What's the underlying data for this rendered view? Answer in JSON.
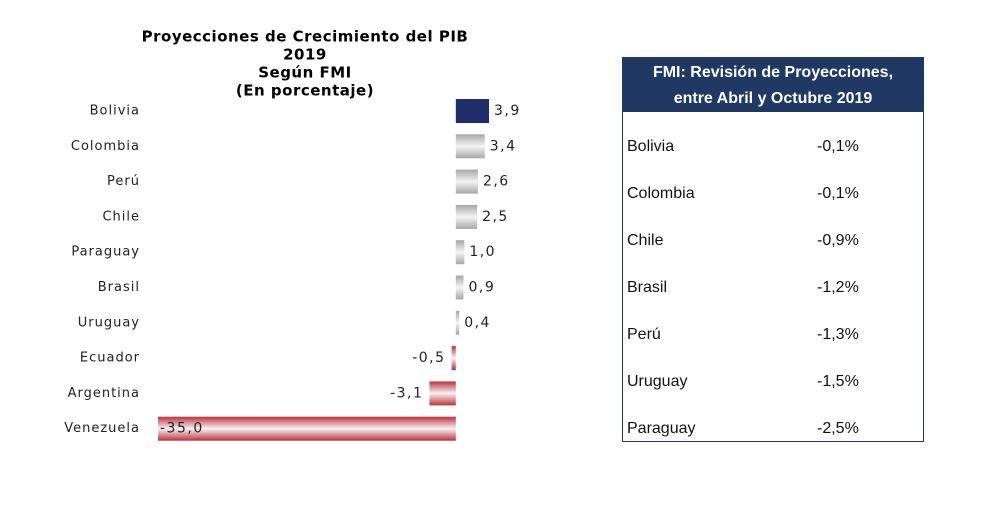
{
  "chart_data": {
    "type": "bar",
    "orientation": "horizontal",
    "title": [
      "Proyecciones de Crecimiento del PIB",
      "2019",
      "Según FMI",
      "(En porcentaje)"
    ],
    "categories": [
      "Bolivia",
      "Colombia",
      "Perú",
      "Chile",
      "Paraguay",
      "Brasil",
      "Uruguay",
      "Ecuador",
      "Argentina",
      "Venezuela"
    ],
    "values": [
      3.9,
      3.4,
      2.6,
      2.5,
      1.0,
      0.9,
      0.4,
      -0.5,
      -3.1,
      -35.0
    ],
    "value_labels": [
      "3,9",
      "3,4",
      "2,6",
      "2,5",
      "1,0",
      "0,9",
      "0,4",
      "-0,5",
      "-3,1",
      "-35,0"
    ],
    "colors": [
      "#1f2d6b",
      "#a6a6a6",
      "#a6a6a6",
      "#a6a6a6",
      "#a6a6a6",
      "#a6a6a6",
      "#a6a6a6",
      "#c0303a",
      "#c0303a",
      "#c0303a"
    ],
    "xlim": [
      -35.0,
      3.9
    ]
  },
  "table": {
    "title": [
      "FMI: Revisión de Proyecciones,",
      "entre Abril y Octubre 2019"
    ],
    "rows": [
      [
        "Bolivia",
        "-0,1%"
      ],
      [
        "Colombia",
        "-0,1%"
      ],
      [
        "Chile",
        "-0,9%"
      ],
      [
        "Brasil",
        "-1,2%"
      ],
      [
        "Perú",
        "-1,3%"
      ],
      [
        "Uruguay",
        "-1,5%"
      ],
      [
        "Paraguay",
        "-2,5%"
      ]
    ]
  }
}
